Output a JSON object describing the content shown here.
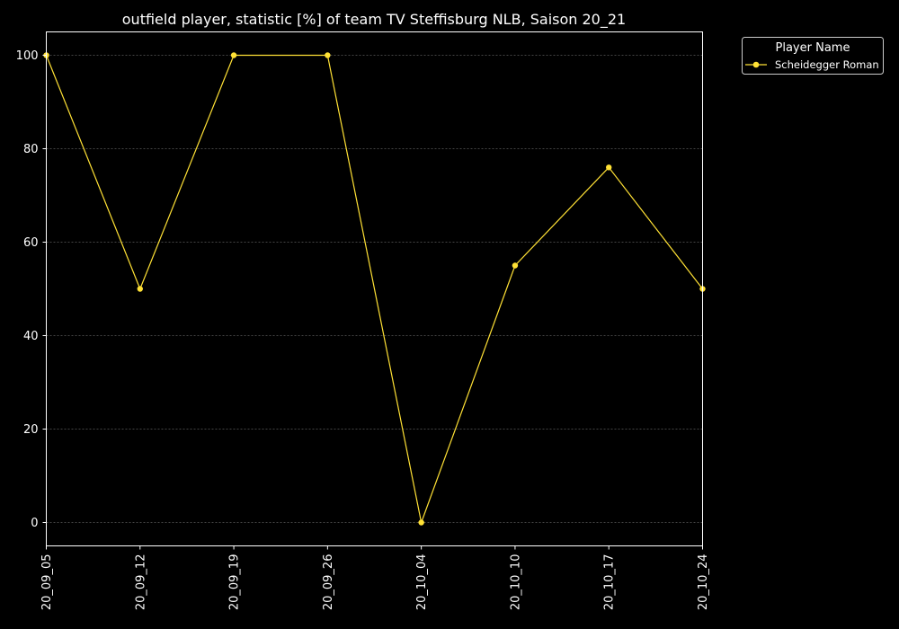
{
  "chart_data": {
    "type": "line",
    "title": "outfield player, statistic [%] of team TV Steffisburg NLB, Saison 20_21",
    "xlabel": "",
    "ylabel": "",
    "categories": [
      "20_09_05",
      "20_09_12",
      "20_09_19",
      "20_09_26",
      "20_10_04",
      "20_10_10",
      "20_10_17",
      "20_10_24"
    ],
    "series": [
      {
        "name": "Scheidegger Roman",
        "values": [
          100,
          50,
          100,
          100,
          0,
          55,
          76,
          50
        ],
        "color": "#ffe135"
      }
    ],
    "ylim": [
      -5,
      105
    ],
    "yticks": [
      0,
      20,
      40,
      60,
      80,
      100
    ],
    "grid": true,
    "legend": {
      "title": "Player Name",
      "placement": "outside-top-right"
    },
    "colors": {
      "background": "#000000",
      "foreground": "#ffffff",
      "grid": "#888888"
    }
  }
}
